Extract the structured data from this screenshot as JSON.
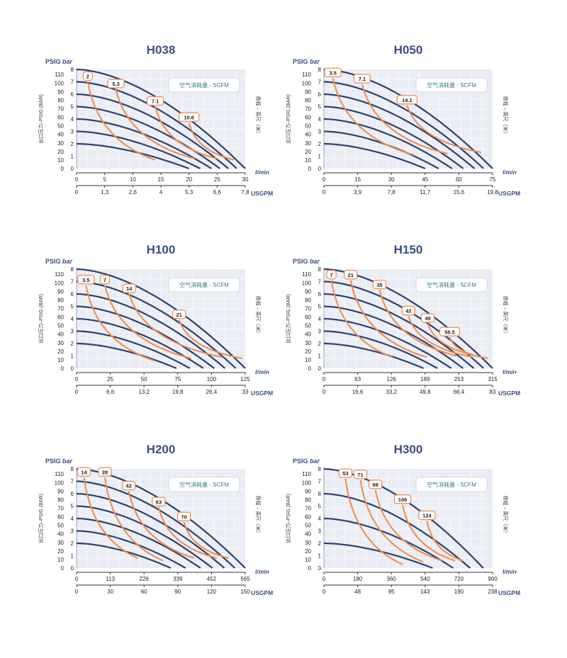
{
  "colors": {
    "pressure_curve": "#2c4070",
    "air_curve": "#f08a4b",
    "plot_bg": "#eaedf4",
    "title": "#3a4f86",
    "legend_text": "#2f7f7a"
  },
  "labels": {
    "psig": "PSIG",
    "bar": "bar",
    "flow_unit": "l/min",
    "usgpm": "USGPM",
    "y_left": "出口压力–PSIG (BAR)",
    "y_right": "扬程 – 英尺（米）",
    "legend": "空气消耗量 - SCFM",
    "psig_ticks": [
      "0",
      "10",
      "20",
      "30",
      "40",
      "50",
      "60",
      "70",
      "80",
      "90",
      "100",
      "110"
    ],
    "bar_ticks": [
      "0",
      "1",
      "2",
      "3",
      "4",
      "5",
      "6",
      "7",
      "8"
    ]
  },
  "chart_data": [
    {
      "type": "line",
      "title": "H038",
      "x_lmin_ticks": [
        "0",
        "5",
        "10",
        "15",
        "20",
        "25",
        "30"
      ],
      "x_usgpm_ticks": [
        "0",
        "1,3",
        "2,6",
        "4",
        "5.3",
        "6,6",
        "7,8"
      ],
      "xlim": [
        0,
        30
      ],
      "ylim_bar": [
        0,
        8
      ],
      "pressure_curves": [
        {
          "max_bar": 8,
          "x_end": 30
        },
        {
          "max_bar": 7,
          "x_end": 28.5
        },
        {
          "max_bar": 6,
          "x_end": 27
        },
        {
          "max_bar": 5,
          "x_end": 25.5
        },
        {
          "max_bar": 4,
          "x_end": 24
        },
        {
          "max_bar": 3,
          "x_end": 22
        },
        {
          "max_bar": 2,
          "x_end": 20
        }
      ],
      "air_curves": [
        {
          "label": "2",
          "x0": 2,
          "y0": 7.0,
          "x1": 14,
          "y1": 0.7
        },
        {
          "label": "5.3",
          "x0": 7,
          "y0": 6.4,
          "x1": 21,
          "y1": 0.8
        },
        {
          "label": "7.1",
          "x0": 14,
          "y0": 5.0,
          "x1": 25,
          "y1": 0.8
        },
        {
          "label": "10.6",
          "x0": 20,
          "y0": 3.7,
          "x1": 28,
          "y1": 0.7
        }
      ]
    },
    {
      "type": "line",
      "title": "H050",
      "x_lmin_ticks": [
        "0",
        "15",
        "30",
        "45",
        "60",
        "75"
      ],
      "x_usgpm_ticks": [
        "0",
        "3,9",
        "7,8",
        "11,7",
        "15,6",
        "19,8"
      ],
      "xlim": [
        0,
        75
      ],
      "ylim_bar": [
        0,
        8
      ],
      "pressure_curves": [
        {
          "max_bar": 8,
          "x_end": 75
        },
        {
          "max_bar": 7,
          "x_end": 71
        },
        {
          "max_bar": 6,
          "x_end": 67
        },
        {
          "max_bar": 5,
          "x_end": 62
        },
        {
          "max_bar": 4,
          "x_end": 57
        },
        {
          "max_bar": 3,
          "x_end": 51
        },
        {
          "max_bar": 2,
          "x_end": 45
        }
      ],
      "air_curves": [
        {
          "label": "3.5",
          "x0": 4,
          "y0": 7.3,
          "x1": 40,
          "y1": 1.1
        },
        {
          "label": "7.1",
          "x0": 17,
          "y0": 6.8,
          "x1": 55,
          "y1": 1.2
        },
        {
          "label": "14.1",
          "x0": 37,
          "y0": 5.1,
          "x1": 70,
          "y1": 1.3
        }
      ]
    },
    {
      "type": "line",
      "title": "H100",
      "x_lmin_ticks": [
        "0",
        "25",
        "50",
        "75",
        "100",
        "125"
      ],
      "x_usgpm_ticks": [
        "0",
        "6,6",
        "13,2",
        "19,8",
        "26,4",
        "33"
      ],
      "xlim": [
        0,
        125
      ],
      "ylim_bar": [
        0,
        8
      ],
      "pressure_curves": [
        {
          "max_bar": 8,
          "x_end": 125
        },
        {
          "max_bar": 7,
          "x_end": 118
        },
        {
          "max_bar": 6,
          "x_end": 110
        },
        {
          "max_bar": 5,
          "x_end": 102
        },
        {
          "max_bar": 4,
          "x_end": 94
        },
        {
          "max_bar": 3,
          "x_end": 84
        },
        {
          "max_bar": 2,
          "x_end": 74
        }
      ],
      "air_curves": [
        {
          "label": "3.5",
          "x0": 7,
          "y0": 6.7,
          "x1": 58,
          "y1": 0.6
        },
        {
          "label": "7",
          "x0": 21,
          "y0": 6.7,
          "x1": 85,
          "y1": 0.8
        },
        {
          "label": "14",
          "x0": 39,
          "y0": 6.0,
          "x1": 108,
          "y1": 0.9
        },
        {
          "label": "21",
          "x0": 76,
          "y0": 3.9,
          "x1": 123,
          "y1": 0.8
        }
      ]
    },
    {
      "type": "line",
      "title": "H150",
      "x_lmin_ticks": [
        "0",
        "63",
        "126",
        "189",
        "253",
        "315"
      ],
      "x_usgpm_ticks": [
        "0",
        "16,6",
        "33,2",
        "49,8",
        "66,4",
        "83"
      ],
      "xlim": [
        0,
        315
      ],
      "ylim_bar": [
        0,
        8
      ],
      "pressure_curves": [
        {
          "max_bar": 8,
          "x_end": 315
        },
        {
          "max_bar": 7,
          "x_end": 298
        },
        {
          "max_bar": 6,
          "x_end": 280
        },
        {
          "max_bar": 5,
          "x_end": 260
        },
        {
          "max_bar": 4,
          "x_end": 238
        },
        {
          "max_bar": 3,
          "x_end": 212
        },
        {
          "max_bar": 2,
          "x_end": 186
        }
      ],
      "air_curves": [
        {
          "label": "7",
          "x0": 14,
          "y0": 7.1,
          "x1": 128,
          "y1": 0.9
        },
        {
          "label": "21",
          "x0": 50,
          "y0": 7.1,
          "x1": 192,
          "y1": 0.9
        },
        {
          "label": "35",
          "x0": 104,
          "y0": 6.3,
          "x1": 248,
          "y1": 1.0
        },
        {
          "label": "42",
          "x0": 158,
          "y0": 4.2,
          "x1": 278,
          "y1": 0.9
        },
        {
          "label": "49",
          "x0": 194,
          "y0": 3.6,
          "x1": 296,
          "y1": 0.9
        },
        {
          "label": "56.5",
          "x0": 235,
          "y0": 2.5,
          "x1": 306,
          "y1": 0.8
        }
      ]
    },
    {
      "type": "line",
      "title": "H200",
      "x_lmin_ticks": [
        "0",
        "113",
        "226",
        "339",
        "452",
        "565"
      ],
      "x_usgpm_ticks": [
        "0",
        "30",
        "60",
        "90",
        "120",
        "150"
      ],
      "xlim": [
        0,
        565
      ],
      "ylim_bar": [
        0,
        8
      ],
      "pressure_curves": [
        {
          "max_bar": 8,
          "x_end": 565
        },
        {
          "max_bar": 7,
          "x_end": 530
        },
        {
          "max_bar": 6,
          "x_end": 495
        },
        {
          "max_bar": 5,
          "x_end": 455
        },
        {
          "max_bar": 4,
          "x_end": 415
        },
        {
          "max_bar": 3,
          "x_end": 365
        },
        {
          "max_bar": 2,
          "x_end": 315
        }
      ],
      "air_curves": [
        {
          "label": "14",
          "x0": 25,
          "y0": 7.3,
          "x1": 205,
          "y1": 0.8
        },
        {
          "label": "28",
          "x0": 95,
          "y0": 7.3,
          "x1": 290,
          "y1": 0.6
        },
        {
          "label": "42",
          "x0": 175,
          "y0": 6.2,
          "x1": 395,
          "y1": 0.8
        },
        {
          "label": "63",
          "x0": 275,
          "y0": 4.9,
          "x1": 470,
          "y1": 0.8
        },
        {
          "label": "70",
          "x0": 360,
          "y0": 3.7,
          "x1": 510,
          "y1": 0.8
        }
      ]
    },
    {
      "type": "line",
      "title": "H300",
      "x_lmin_ticks": [
        "0",
        "180",
        "360",
        "540",
        "720",
        "900"
      ],
      "x_usgpm_ticks": [
        "0",
        "48",
        "95",
        "143",
        "190",
        "238"
      ],
      "xlim": [
        0,
        900
      ],
      "ylim_bar": [
        0,
        8
      ],
      "pressure_curves": [
        {
          "max_bar": 8,
          "x_end": 850
        },
        {
          "max_bar": 6,
          "x_end": 780
        },
        {
          "max_bar": 4,
          "x_end": 690
        },
        {
          "max_bar": 2,
          "x_end": 580
        }
      ],
      "air_curves": [
        {
          "label": "53",
          "x0": 115,
          "y0": 7.2,
          "x1": 420,
          "y1": 0.3
        },
        {
          "label": "71",
          "x0": 195,
          "y0": 7.1,
          "x1": 530,
          "y1": 0.5
        },
        {
          "label": "88",
          "x0": 275,
          "y0": 6.3,
          "x1": 630,
          "y1": 0.6
        },
        {
          "label": "106",
          "x0": 420,
          "y0": 5.1,
          "x1": 700,
          "y1": 0.6
        },
        {
          "label": "124",
          "x0": 550,
          "y0": 3.8,
          "x1": 740,
          "y1": 0.6
        }
      ]
    }
  ]
}
